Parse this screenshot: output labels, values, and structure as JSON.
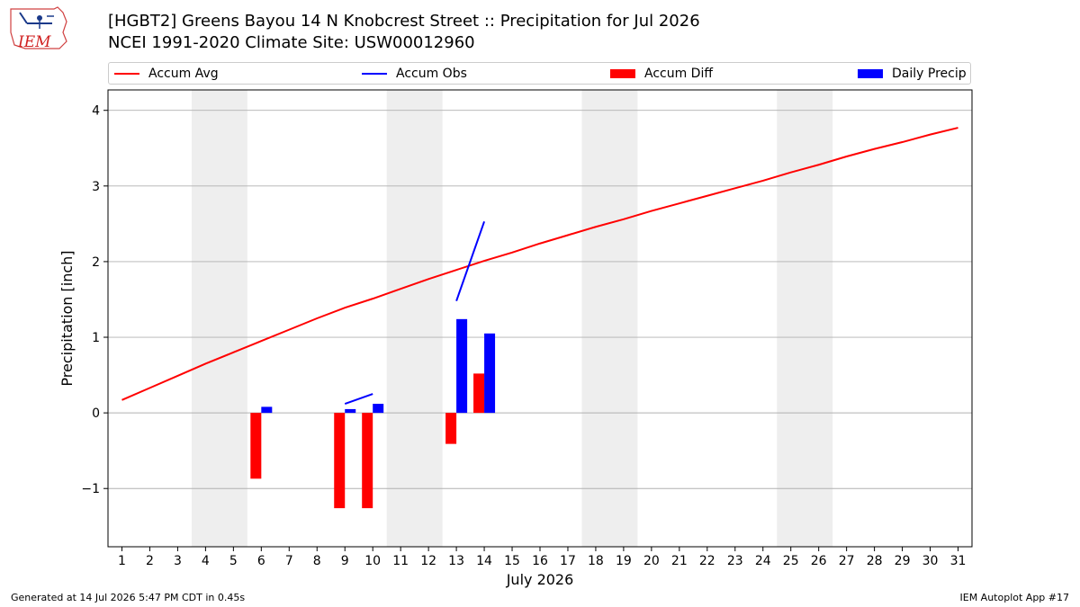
{
  "header": {
    "logo_text": "IEM",
    "title_line1": "[HGBT2] Greens Bayou 14 N Knobcrest Street :: Precipitation for Jul 2026",
    "title_line2": "NCEI 1991-2020 Climate Site: USW00012960"
  },
  "legend": [
    {
      "label": "Accum Avg",
      "kind": "line",
      "color": "#ff0000"
    },
    {
      "label": "Accum Obs",
      "kind": "line",
      "color": "#0000ff"
    },
    {
      "label": "Accum Diff",
      "kind": "rect",
      "color": "#ff0000"
    },
    {
      "label": "Daily Precip",
      "kind": "rect",
      "color": "#0000ff"
    }
  ],
  "footer": {
    "left": "Generated at 14 Jul 2026 5:47 PM CDT in 0.45s",
    "right": "IEM Autoplot App #17"
  },
  "chart_data": {
    "type": "bar",
    "xlabel": "July 2026",
    "ylabel": "Precipitation [inch]",
    "xlim": [
      0.5,
      31.5
    ],
    "ylim": [
      -1.77,
      4.27
    ],
    "yticks": [
      -1,
      0,
      1,
      2,
      3,
      4
    ],
    "ytick_labels": [
      "−1",
      "0",
      "1",
      "2",
      "3",
      "4"
    ],
    "xticks": [
      1,
      2,
      3,
      4,
      5,
      6,
      7,
      8,
      9,
      10,
      11,
      12,
      13,
      14,
      15,
      16,
      17,
      18,
      19,
      20,
      21,
      22,
      23,
      24,
      25,
      26,
      27,
      28,
      29,
      30,
      31
    ],
    "grid": "horizontal",
    "weekend_shading": [
      [
        3.5,
        5.5
      ],
      [
        10.5,
        12.5
      ],
      [
        17.5,
        19.5
      ],
      [
        24.5,
        26.5
      ]
    ],
    "colors": {
      "avg": "#ff0000",
      "obs": "#0000ff",
      "diff": "#ff0000",
      "daily": "#0000ff",
      "shade": "#eeeeee",
      "grid": "#b0b0b0"
    },
    "accum_avg": {
      "x": [
        1,
        2,
        3,
        4,
        5,
        6,
        7,
        8,
        9,
        10,
        11,
        12,
        13,
        14,
        15,
        16,
        17,
        18,
        19,
        20,
        21,
        22,
        23,
        24,
        25,
        26,
        27,
        28,
        29,
        30,
        31
      ],
      "values": [
        0.17,
        0.33,
        0.49,
        0.65,
        0.8,
        0.95,
        1.1,
        1.25,
        1.39,
        1.51,
        1.64,
        1.77,
        1.89,
        2.01,
        2.12,
        2.24,
        2.35,
        2.46,
        2.56,
        2.67,
        2.77,
        2.87,
        2.97,
        3.07,
        3.18,
        3.28,
        3.39,
        3.49,
        3.58,
        3.68,
        3.77
      ]
    },
    "accum_obs_segments": [
      {
        "x": [
          9,
          10
        ],
        "values": [
          0.12,
          0.25
        ]
      },
      {
        "x": [
          13,
          14
        ],
        "values": [
          1.48,
          2.53
        ]
      }
    ],
    "accum_diff": {
      "x": [
        6,
        9,
        10,
        13,
        14
      ],
      "values": [
        -0.87,
        -1.26,
        -1.26,
        -0.41,
        0.52
      ]
    },
    "daily_precip": {
      "x": [
        6,
        9,
        10,
        13,
        14
      ],
      "values": [
        0.08,
        0.05,
        0.12,
        1.24,
        1.05
      ]
    }
  }
}
